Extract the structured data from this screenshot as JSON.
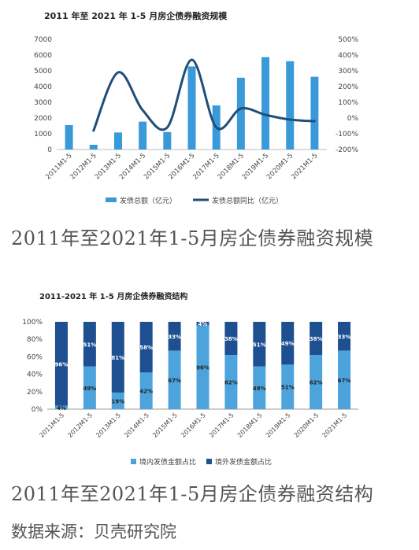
{
  "chart_data": [
    {
      "type": "bar",
      "title": "2011 年至 2021 年 1-5 月房企债券融资规模",
      "categories": [
        "2011M1-5",
        "2012M1-5",
        "2013M1-5",
        "2014M1-5",
        "2015M1-5",
        "2016M1-5",
        "2017M1-5",
        "2018M1-5",
        "2019M1-5",
        "2020M1-5",
        "2021M1-5"
      ],
      "y_ticks": [
        "7000",
        "6000",
        "5000",
        "4000",
        "3000",
        "2000",
        "1000",
        "0"
      ],
      "y2_ticks": [
        "500%",
        "400%",
        "300%",
        "200%",
        "100%",
        "0%",
        "-100%",
        "-200%"
      ],
      "ylim": [
        0,
        7000
      ],
      "y2lim": [
        -200,
        500
      ],
      "series": [
        {
          "name": "发债总额（亿元）",
          "type": "bar",
          "color": "#3a9ad9",
          "values": [
            1550,
            300,
            1080,
            1770,
            1110,
            5280,
            2800,
            4560,
            5870,
            5610,
            4620
          ]
        },
        {
          "name": "发债总额同比（亿元）",
          "type": "line",
          "color": "#1f4e79",
          "values": [
            null,
            -80,
            290,
            50,
            -60,
            370,
            -60,
            60,
            20,
            -10,
            -20
          ]
        }
      ],
      "legend": "bottom"
    },
    {
      "type": "bar",
      "stacked": true,
      "title": "2011-2021 年 1-5 月房企债券融资结构",
      "categories": [
        "2011M1-5",
        "2012M1-5",
        "2013M1-5",
        "2014M1-5",
        "2015M1-5",
        "2016M1-5",
        "2017M1-5",
        "2018M1-5",
        "2019M1-5",
        "2020M1-5",
        "2021M1-5"
      ],
      "y_ticks": [
        "100%",
        "80%",
        "60%",
        "40%",
        "20%",
        "0%"
      ],
      "ylim": [
        0,
        100
      ],
      "series": [
        {
          "name": "境内发债金额占比",
          "color": "#4da3dc",
          "values": [
            4,
            49,
            19,
            42,
            67,
            96,
            62,
            49,
            51,
            62,
            67
          ],
          "labels": [
            "4%",
            "49%",
            "19%",
            "42%",
            "67%",
            "96%",
            "62%",
            "49%",
            "51%",
            "62%",
            "67%"
          ]
        },
        {
          "name": "境外发债金额占比",
          "color": "#1e4f91",
          "values": [
            96,
            51,
            81,
            58,
            33,
            4,
            38,
            51,
            49,
            38,
            33
          ],
          "labels": [
            "96%",
            "51%",
            "81%",
            "58%",
            "33%",
            "4%",
            "38%",
            "51%",
            "49%",
            "38%",
            "33%"
          ]
        }
      ],
      "legend": "bottom"
    }
  ],
  "captions": {
    "chart1": "2011年至2021年1-5月房企债券融资规模",
    "chart2": "2011年至2021年1-5月房企债券融资结构",
    "source": "数据来源：贝壳研究院"
  }
}
